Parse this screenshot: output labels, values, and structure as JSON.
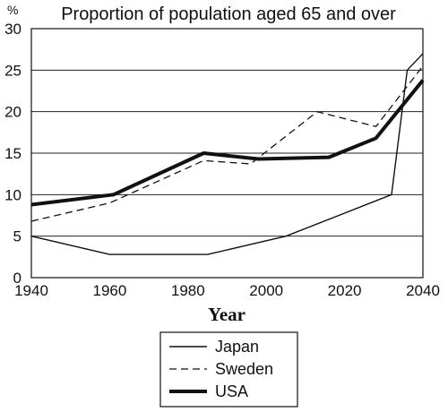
{
  "chart_data": {
    "type": "line",
    "title": "Proportion of population aged 65 and over",
    "xlabel": "Year",
    "ylabel": "%",
    "xlim": [
      1940,
      2040
    ],
    "ylim": [
      0,
      30
    ],
    "xticks": [
      "1940",
      "1960",
      "1980",
      "2000",
      "2020",
      "2040"
    ],
    "yticks": [
      "0",
      "5",
      "10",
      "15",
      "20",
      "25",
      "30"
    ],
    "grid": "horizontal",
    "legend_position": "bottom-center",
    "series": [
      {
        "name": "Japan",
        "style": "solid-thin",
        "color": "#111111",
        "x": [
          1940,
          1960,
          1985,
          2005,
          2032,
          2036,
          2040
        ],
        "y": [
          5,
          2.8,
          2.8,
          5,
          10,
          25,
          27
        ]
      },
      {
        "name": "Sweden",
        "style": "dashed",
        "color": "#111111",
        "x": [
          1940,
          1960,
          1984,
          1996,
          2013,
          2028,
          2040
        ],
        "y": [
          6.8,
          9,
          14.1,
          13.7,
          20,
          18.2,
          25.5
        ]
      },
      {
        "name": "USA",
        "style": "solid-thick",
        "color": "#111111",
        "x": [
          1940,
          1961,
          1984,
          1998,
          2016,
          2028,
          2040
        ],
        "y": [
          8.8,
          10,
          15,
          14.3,
          14.5,
          16.8,
          23.8
        ]
      }
    ]
  }
}
